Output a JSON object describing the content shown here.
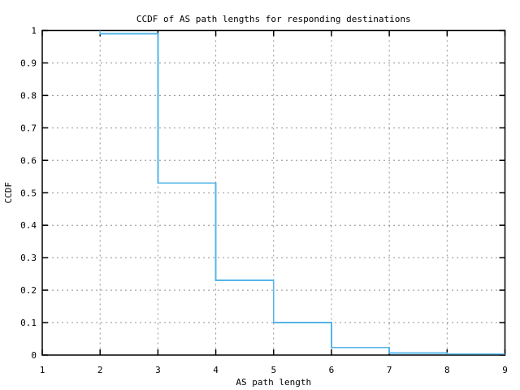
{
  "chart_data": {
    "type": "line",
    "style": "steps",
    "title": "CCDF of AS path lengths for responding destinations",
    "xlabel": "AS path length",
    "ylabel": "CCDF",
    "xlim": [
      1,
      9
    ],
    "ylim": [
      0,
      1
    ],
    "xticks": [
      1,
      2,
      3,
      4,
      5,
      6,
      7,
      8,
      9
    ],
    "xtick_labels": [
      "1",
      "2",
      "3",
      "4",
      "5",
      "6",
      "7",
      "8",
      "9"
    ],
    "yticks": [
      0,
      0.1,
      0.2,
      0.3,
      0.4,
      0.5,
      0.6,
      0.7,
      0.8,
      0.9,
      1
    ],
    "ytick_labels": [
      "0",
      "0.1",
      "0.2",
      "0.3",
      "0.4",
      "0.5",
      "0.6",
      "0.7",
      "0.8",
      "0.9",
      "1"
    ],
    "grid": true,
    "legend": "none",
    "colors": {
      "line": "#56b4e9",
      "grid": "#909090",
      "axis": "#000000",
      "background": "#ffffff",
      "text": "#000000"
    },
    "series": [
      {
        "name": "CCDF of AS path length",
        "points": [
          [
            2,
            1.0
          ],
          [
            2,
            0.99
          ],
          [
            3,
            0.99
          ],
          [
            3,
            0.53
          ],
          [
            4,
            0.53
          ],
          [
            4,
            0.23
          ],
          [
            5,
            0.23
          ],
          [
            5,
            0.1
          ],
          [
            6,
            0.1
          ],
          [
            6,
            0.023
          ],
          [
            7,
            0.023
          ],
          [
            7,
            0.006
          ],
          [
            8,
            0.006
          ],
          [
            8,
            0.003
          ],
          [
            9,
            0.003
          ]
        ]
      }
    ],
    "steps_summary": {
      "as_path_length_interval_start": [
        2,
        3,
        4,
        5,
        6,
        7,
        8
      ],
      "ccdf_value": [
        0.99,
        0.53,
        0.23,
        0.1,
        0.023,
        0.006,
        0.003
      ]
    }
  }
}
